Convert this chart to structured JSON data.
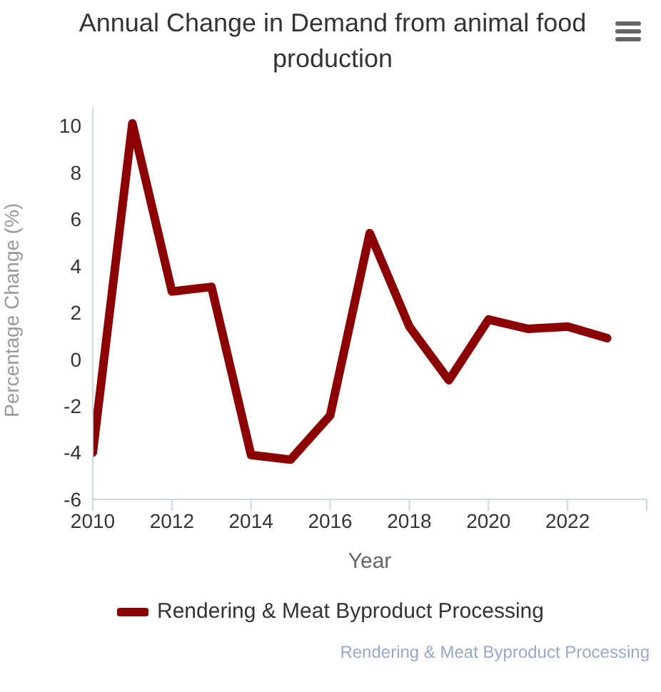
{
  "chart_data": {
    "type": "line",
    "title": "Annual Change in Demand from animal food production",
    "xlabel": "Year",
    "ylabel": "Percentage Change (%)",
    "x": [
      2010,
      2011,
      2012,
      2013,
      2014,
      2015,
      2016,
      2017,
      2018,
      2019,
      2020,
      2021,
      2022,
      2023
    ],
    "series": [
      {
        "name": "Rendering & Meat Byproduct Processing",
        "color": "#8b0000",
        "values": [
          -4.0,
          10.1,
          2.9,
          3.1,
          -4.1,
          -4.3,
          -2.4,
          5.4,
          1.4,
          -0.9,
          1.7,
          1.3,
          1.4,
          0.9
        ]
      }
    ],
    "xlim": [
      2010,
      2024
    ],
    "xticks": [
      2010,
      2012,
      2014,
      2016,
      2018,
      2020,
      2022,
      {
        "value": 2024,
        "label": null
      }
    ],
    "ylim": [
      -6,
      10.8
    ],
    "yticks": [
      -6,
      -4,
      -2,
      0,
      2,
      4,
      6,
      8,
      10
    ],
    "legend": "bottom",
    "marker": "none",
    "line_style": "solid",
    "annotations": [
      "Rendering & Meat Byproduct Processing"
    ]
  }
}
